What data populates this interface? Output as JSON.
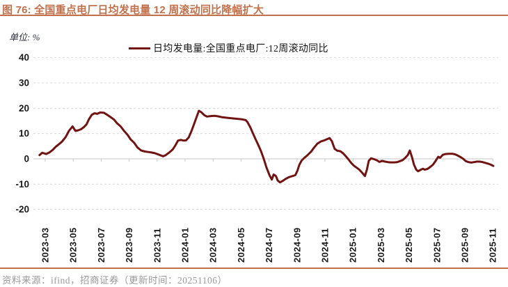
{
  "header": {
    "title": "图 76: 全国重点电厂日均发电量 12 周滚动同比降幅扩大"
  },
  "footer": {
    "text": "资料来源：ifind，招商证券（更新时间：20251106）"
  },
  "colors": {
    "accent": "#c1714c",
    "series_line": "#701311",
    "grid": "#d9d9d9",
    "axis": "#c6c6c6",
    "tick_label": "#1a1a1a",
    "source_text": "#9a9a9a"
  },
  "chart_data": {
    "type": "line",
    "title": "图 76: 全国重点电厂日均发电量 12 周滚动同比降幅扩大",
    "unit_label": "单位: %",
    "legend": "日均发电量:全国重点电厂:12周滚动同比",
    "legend_position": "top-center",
    "grid": "dashed-horizontal",
    "xlabel": "",
    "ylabel": "%",
    "ylim": [
      -20,
      40
    ],
    "y_ticks": [
      40,
      30,
      20,
      10,
      0,
      -10,
      -20
    ],
    "x_tick_labels": [
      "2023-03",
      "2023-05",
      "2023-07",
      "2023-09",
      "2023-11",
      "2024-01",
      "2024-03",
      "2024-05",
      "2024-07",
      "2024-09",
      "2024-11",
      "2025-01",
      "2025-03",
      "2025-05",
      "2025-07",
      "2025-09",
      "2025-11"
    ],
    "series": [
      {
        "name": "日均发电量:全国重点电厂:12周滚动同比",
        "color": "#701311",
        "points": [
          [
            "2023-02-19",
            1.5
          ],
          [
            "2023-02-25",
            2.4
          ],
          [
            "2023-03-03",
            1.9
          ],
          [
            "2023-03-10",
            2.5
          ],
          [
            "2023-03-17",
            3.5
          ],
          [
            "2023-03-24",
            4.8
          ],
          [
            "2023-03-31",
            5.8
          ],
          [
            "2023-04-07",
            6.8
          ],
          [
            "2023-04-15",
            8.6
          ],
          [
            "2023-04-22",
            11.0
          ],
          [
            "2023-04-30",
            12.8
          ],
          [
            "2023-05-06",
            11.0
          ],
          [
            "2023-05-12",
            11.3
          ],
          [
            "2023-05-18",
            11.7
          ],
          [
            "2023-05-24",
            12.5
          ],
          [
            "2023-05-30",
            13.6
          ],
          [
            "2023-06-05",
            15.7
          ],
          [
            "2023-06-11",
            17.4
          ],
          [
            "2023-06-17",
            18.0
          ],
          [
            "2023-06-23",
            17.8
          ],
          [
            "2023-06-29",
            18.3
          ],
          [
            "2023-07-07",
            18.2
          ],
          [
            "2023-07-14",
            17.4
          ],
          [
            "2023-07-22",
            16.4
          ],
          [
            "2023-07-29",
            15.5
          ],
          [
            "2023-08-05",
            14.1
          ],
          [
            "2023-08-13",
            12.8
          ],
          [
            "2023-08-21",
            10.9
          ],
          [
            "2023-08-28",
            9.5
          ],
          [
            "2023-09-04",
            7.7
          ],
          [
            "2023-09-12",
            6.3
          ],
          [
            "2023-09-19",
            4.5
          ],
          [
            "2023-09-27",
            3.3
          ],
          [
            "2023-10-05",
            2.9
          ],
          [
            "2023-10-12",
            2.7
          ],
          [
            "2023-10-19",
            2.5
          ],
          [
            "2023-10-27",
            2.2
          ],
          [
            "2023-11-04",
            1.7
          ],
          [
            "2023-11-14",
            1.0
          ],
          [
            "2023-11-20",
            1.5
          ],
          [
            "2023-11-26",
            2.3
          ],
          [
            "2023-12-04",
            3.6
          ],
          [
            "2023-12-10",
            5.2
          ],
          [
            "2023-12-16",
            7.2
          ],
          [
            "2023-12-22",
            7.5
          ],
          [
            "2023-12-28",
            7.2
          ],
          [
            "2024-01-03",
            7.3
          ],
          [
            "2024-01-09",
            8.5
          ],
          [
            "2024-01-15",
            11.0
          ],
          [
            "2024-01-21",
            14.0
          ],
          [
            "2024-01-26",
            16.5
          ],
          [
            "2024-01-31",
            19.0
          ],
          [
            "2024-02-06",
            18.4
          ],
          [
            "2024-02-12",
            17.3
          ],
          [
            "2024-02-18",
            16.7
          ],
          [
            "2024-02-26",
            16.9
          ],
          [
            "2024-03-05",
            17.0
          ],
          [
            "2024-03-12",
            16.8
          ],
          [
            "2024-03-19",
            16.5
          ],
          [
            "2024-04-03",
            16.2
          ],
          [
            "2024-04-18",
            15.9
          ],
          [
            "2024-05-03",
            15.6
          ],
          [
            "2024-05-11",
            15.3
          ],
          [
            "2024-05-15",
            14.5
          ],
          [
            "2024-05-21",
            12.5
          ],
          [
            "2024-05-27",
            10.0
          ],
          [
            "2024-06-02",
            7.8
          ],
          [
            "2024-06-08",
            5.5
          ],
          [
            "2024-06-14",
            3.0
          ],
          [
            "2024-06-20",
            0.0
          ],
          [
            "2024-06-26",
            -3.5
          ],
          [
            "2024-07-02",
            -6.5
          ],
          [
            "2024-07-07",
            -8.2
          ],
          [
            "2024-07-11",
            -6.2
          ],
          [
            "2024-07-16",
            -6.8
          ],
          [
            "2024-07-20",
            -8.6
          ],
          [
            "2024-07-25",
            -9.3
          ],
          [
            "2024-07-31",
            -8.7
          ],
          [
            "2024-08-06",
            -8.0
          ],
          [
            "2024-08-12",
            -7.4
          ],
          [
            "2024-08-18",
            -7.0
          ],
          [
            "2024-08-24",
            -6.7
          ],
          [
            "2024-08-28",
            -6.4
          ],
          [
            "2024-09-02",
            -4.6
          ],
          [
            "2024-09-06",
            -2.4
          ],
          [
            "2024-09-11",
            -0.7
          ],
          [
            "2024-09-17",
            0.4
          ],
          [
            "2024-09-23",
            1.3
          ],
          [
            "2024-10-01",
            2.8
          ],
          [
            "2024-10-08",
            4.5
          ],
          [
            "2024-10-15",
            6.0
          ],
          [
            "2024-10-23",
            6.9
          ],
          [
            "2024-10-30",
            7.3
          ],
          [
            "2024-11-05",
            7.7
          ],
          [
            "2024-11-11",
            8.2
          ],
          [
            "2024-11-16",
            7.0
          ],
          [
            "2024-11-22",
            3.9
          ],
          [
            "2024-11-28",
            3.2
          ],
          [
            "2024-12-04",
            3.0
          ],
          [
            "2024-12-10",
            2.2
          ],
          [
            "2024-12-16",
            1.0
          ],
          [
            "2024-12-22",
            -0.3
          ],
          [
            "2024-12-28",
            -1.7
          ],
          [
            "2025-01-03",
            -2.7
          ],
          [
            "2025-01-09",
            -3.5
          ],
          [
            "2025-01-15",
            -4.3
          ],
          [
            "2025-01-21",
            -5.5
          ],
          [
            "2025-01-27",
            -6.8
          ],
          [
            "2025-02-01",
            -4.2
          ],
          [
            "2025-02-05",
            -0.8
          ],
          [
            "2025-02-10",
            0.2
          ],
          [
            "2025-02-14",
            0.0
          ],
          [
            "2025-02-19",
            -0.3
          ],
          [
            "2025-02-23",
            -0.6
          ],
          [
            "2025-02-28",
            -1.2
          ],
          [
            "2025-03-04",
            -0.8
          ],
          [
            "2025-03-10",
            -1.1
          ],
          [
            "2025-03-16",
            -1.3
          ],
          [
            "2025-03-22",
            -1.4
          ],
          [
            "2025-03-30",
            -1.4
          ],
          [
            "2025-04-06",
            -1.3
          ],
          [
            "2025-04-12",
            -0.9
          ],
          [
            "2025-04-18",
            -0.5
          ],
          [
            "2025-04-24",
            0.5
          ],
          [
            "2025-04-29",
            1.5
          ],
          [
            "2025-05-03",
            3.3
          ],
          [
            "2025-05-08",
            0.5
          ],
          [
            "2025-05-12",
            -2.3
          ],
          [
            "2025-05-17",
            -4.3
          ],
          [
            "2025-05-21",
            -4.9
          ],
          [
            "2025-05-27",
            -4.3
          ],
          [
            "2025-06-01",
            -3.9
          ],
          [
            "2025-06-05",
            -4.3
          ],
          [
            "2025-06-11",
            -4.0
          ],
          [
            "2025-06-17",
            -3.2
          ],
          [
            "2025-06-23",
            -2.3
          ],
          [
            "2025-06-28",
            -1.0
          ],
          [
            "2025-07-04",
            0.8
          ],
          [
            "2025-07-08",
            0.4
          ],
          [
            "2025-07-14",
            1.6
          ],
          [
            "2025-07-20",
            1.9
          ],
          [
            "2025-07-27",
            2.0
          ],
          [
            "2025-08-04",
            2.0
          ],
          [
            "2025-08-10",
            1.8
          ],
          [
            "2025-08-16",
            1.3
          ],
          [
            "2025-08-22",
            0.7
          ],
          [
            "2025-08-28",
            0.0
          ],
          [
            "2025-09-03",
            -0.9
          ],
          [
            "2025-09-09",
            -1.3
          ],
          [
            "2025-09-15",
            -1.5
          ],
          [
            "2025-09-21",
            -1.3
          ],
          [
            "2025-09-27",
            -1.1
          ],
          [
            "2025-10-03",
            -1.1
          ],
          [
            "2025-10-09",
            -1.3
          ],
          [
            "2025-10-15",
            -1.6
          ],
          [
            "2025-10-21",
            -1.9
          ],
          [
            "2025-10-27",
            -2.3
          ],
          [
            "2025-11-02",
            -2.8
          ]
        ]
      }
    ]
  }
}
